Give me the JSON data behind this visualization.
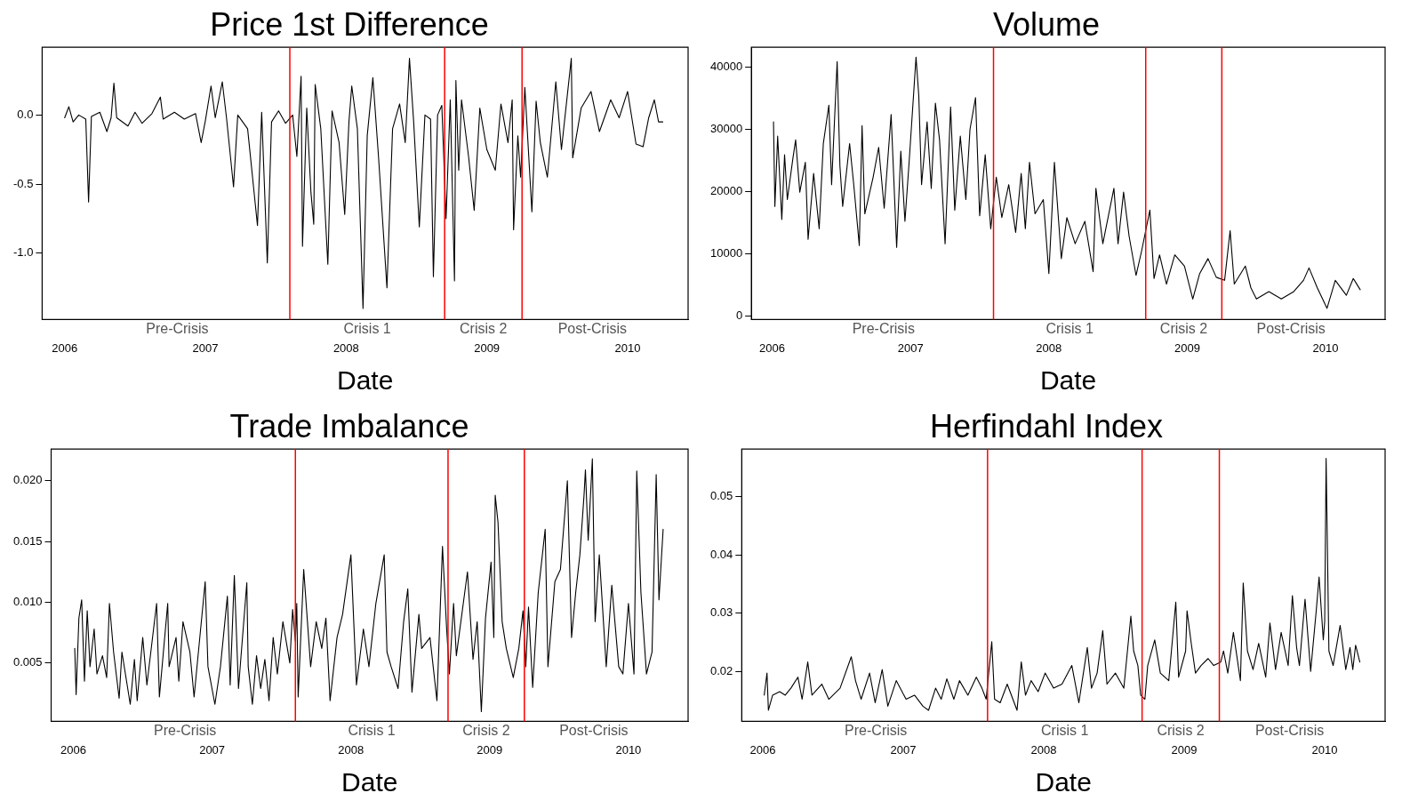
{
  "chart_data": [
    {
      "type": "line",
      "title": "Price 1st Difference",
      "xlabel": "Date",
      "color": "#000000",
      "xlim": [
        2005.84,
        2010.43
      ],
      "xticks": [
        2006,
        2007,
        2008,
        2009,
        2010
      ],
      "ylim": [
        -1.48,
        0.49
      ],
      "yticks": [
        {
          "value": -1,
          "label": "-1.0"
        },
        {
          "value": -0.5,
          "label": "-0.5"
        },
        {
          "value": 0,
          "label": "0.0"
        }
      ],
      "x": [
        2006.0,
        2006.03,
        2006.06,
        2006.1,
        2006.15,
        2006.17,
        2006.19,
        2006.25,
        2006.3,
        2006.33,
        2006.35,
        2006.37,
        2006.45,
        2006.5,
        2006.55,
        2006.62,
        2006.68,
        2006.7,
        2006.78,
        2006.85,
        2006.93,
        2006.97,
        2007.0,
        2007.04,
        2007.07,
        2007.12,
        2007.15,
        2007.2,
        2007.23,
        2007.3,
        2007.37,
        2007.4,
        2007.44,
        2007.47,
        2007.52,
        2007.57,
        2007.62,
        2007.65,
        2007.68,
        2007.69,
        2007.72,
        2007.75,
        2007.77,
        2007.78,
        2007.82,
        2007.87,
        2007.9,
        2007.95,
        2007.99,
        2008.02,
        2008.04,
        2008.08,
        2008.12,
        2008.15,
        2008.19,
        2008.23,
        2008.29,
        2008.33,
        2008.38,
        2008.42,
        2008.45,
        2008.48,
        2008.52,
        2008.56,
        2008.6,
        2008.62,
        2008.65,
        2008.68,
        2008.71,
        2008.74,
        2008.77,
        2008.78,
        2008.8,
        2008.82,
        2008.87,
        2008.91,
        2008.95,
        2009.0,
        2009.06,
        2009.1,
        2009.15,
        2009.18,
        2009.19,
        2009.22,
        2009.24,
        2009.27,
        2009.32,
        2009.35,
        2009.38,
        2009.43,
        2009.49,
        2009.53,
        2009.6,
        2009.61,
        2009.67,
        2009.74,
        2009.8,
        2009.88,
        2009.94,
        2010.0,
        2010.06,
        2010.11,
        2010.15,
        2010.19,
        2010.22,
        2010.25
      ],
      "values": [
        -0.02,
        0.06,
        -0.05,
        0.0,
        -0.03,
        -0.63,
        -0.01,
        0.02,
        -0.12,
        -0.02,
        0.23,
        -0.02,
        -0.08,
        0.02,
        -0.06,
        0.01,
        0.13,
        -0.03,
        0.02,
        -0.03,
        0.01,
        -0.2,
        -0.04,
        0.21,
        -0.02,
        0.24,
        -0.02,
        -0.52,
        0.0,
        -0.1,
        -0.8,
        0.02,
        -1.07,
        -0.05,
        0.03,
        -0.06,
        0.0,
        -0.3,
        0.28,
        -0.95,
        0.05,
        -0.56,
        -0.79,
        0.22,
        -0.1,
        -1.08,
        0.03,
        -0.2,
        -0.72,
        -0.05,
        0.21,
        -0.1,
        -1.4,
        -0.15,
        0.27,
        -0.3,
        -1.25,
        -0.1,
        0.08,
        -0.2,
        0.41,
        -0.05,
        -0.81,
        0.0,
        -0.03,
        -1.17,
        0.0,
        0.07,
        -0.75,
        0.11,
        -1.2,
        0.25,
        -0.4,
        0.11,
        -0.3,
        -0.69,
        0.05,
        -0.25,
        -0.4,
        0.08,
        -0.2,
        0.11,
        -0.83,
        -0.15,
        -0.45,
        0.2,
        -0.7,
        0.1,
        -0.2,
        -0.45,
        0.24,
        -0.25,
        0.41,
        -0.31,
        0.05,
        0.17,
        -0.12,
        0.11,
        -0.02,
        0.17,
        -0.21,
        -0.23,
        -0.02,
        0.11,
        -0.05,
        -0.05
      ],
      "ref_lines": [
        {
          "axis": "x",
          "value": 2007.6,
          "color": "#ff0000"
        },
        {
          "axis": "x",
          "value": 2008.7,
          "color": "#ff0000"
        },
        {
          "axis": "x",
          "value": 2009.25,
          "color": "#ff0000"
        }
      ],
      "annotations": [
        "Pre-Crisis",
        "Crisis 1",
        "Crisis 2",
        "Post-Crisis"
      ]
    },
    {
      "type": "line",
      "title": "Volume",
      "xlabel": "Date",
      "color": "#000000",
      "xlim": [
        2005.85,
        2010.43
      ],
      "xticks": [
        2006,
        2007,
        2008,
        2009,
        2010
      ],
      "ylim": [
        -600,
        43200
      ],
      "yticks": [
        0,
        10000,
        20000,
        30000,
        40000
      ],
      "x": [
        2006.01,
        2006.02,
        2006.04,
        2006.07,
        2006.09,
        2006.11,
        2006.15,
        2006.17,
        2006.2,
        2006.24,
        2006.26,
        2006.3,
        2006.34,
        2006.37,
        2006.41,
        2006.43,
        2006.47,
        2006.49,
        2006.51,
        2006.56,
        2006.59,
        2006.63,
        2006.65,
        2006.67,
        2006.73,
        2006.77,
        2006.81,
        2006.86,
        2006.9,
        2006.93,
        2006.96,
        2006.99,
        2007.04,
        2007.06,
        2007.08,
        2007.12,
        2007.15,
        2007.18,
        2007.21,
        2007.25,
        2007.29,
        2007.32,
        2007.36,
        2007.4,
        2007.43,
        2007.47,
        2007.5,
        2007.54,
        2007.58,
        2007.62,
        2007.66,
        2007.71,
        2007.76,
        2007.8,
        2007.83,
        2007.86,
        2007.9,
        2007.96,
        2008.0,
        2008.04,
        2008.09,
        2008.13,
        2008.19,
        2008.26,
        2008.32,
        2008.34,
        2008.39,
        2008.47,
        2008.5,
        2008.54,
        2008.58,
        2008.63,
        2008.67,
        2008.73,
        2008.76,
        2008.8,
        2008.85,
        2008.91,
        2008.98,
        2009.04,
        2009.09,
        2009.15,
        2009.21,
        2009.27,
        2009.31,
        2009.34,
        2009.42,
        2009.46,
        2009.5,
        2009.59,
        2009.68,
        2009.77,
        2009.84,
        2009.88,
        2009.94,
        2010.01,
        2010.07,
        2010.15,
        2010.2,
        2010.25
      ],
      "values": [
        31200,
        17600,
        28900,
        15500,
        25900,
        18700,
        25300,
        28300,
        19900,
        24700,
        12300,
        22900,
        14000,
        27700,
        33900,
        21100,
        40900,
        24100,
        17600,
        27700,
        21100,
        11300,
        30600,
        16400,
        22300,
        27100,
        17300,
        32400,
        11000,
        26500,
        15200,
        24700,
        41600,
        35400,
        21100,
        31200,
        20500,
        34200,
        28300,
        11600,
        33600,
        17000,
        28900,
        18700,
        30000,
        35100,
        16100,
        25900,
        14000,
        22300,
        15800,
        21100,
        13400,
        22900,
        14000,
        24700,
        16400,
        18700,
        6800,
        24700,
        9200,
        15800,
        11600,
        15200,
        7100,
        20500,
        11600,
        20500,
        11600,
        19900,
        12800,
        6500,
        10400,
        17000,
        6000,
        9800,
        5100,
        9800,
        8000,
        2700,
        6800,
        9200,
        6200,
        5700,
        13700,
        5100,
        8000,
        4500,
        2700,
        3900,
        2700,
        3900,
        5700,
        7700,
        4500,
        1200,
        5700,
        3300,
        6000,
        4200
      ],
      "ref_lines": [
        {
          "axis": "x",
          "value": 2007.6,
          "color": "#ff0000"
        },
        {
          "axis": "x",
          "value": 2008.7,
          "color": "#ff0000"
        },
        {
          "axis": "x",
          "value": 2009.25,
          "color": "#ff0000"
        }
      ],
      "annotations": [
        "Pre-Crisis",
        "Crisis 1",
        "Crisis 2",
        "Post-Crisis"
      ]
    },
    {
      "type": "line",
      "title": "Trade Imbalance",
      "xlabel": "Date",
      "color": "#000000",
      "xlim": [
        2005.84,
        2010.43
      ],
      "xticks": [
        2006,
        2007,
        2008,
        2009,
        2010
      ],
      "ylim": [
        0.0002,
        0.0226
      ],
      "yticks": [
        {
          "value": 0.005,
          "label": "0.005"
        },
        {
          "value": 0.01,
          "label": "0.010"
        },
        {
          "value": 0.015,
          "label": "0.015"
        },
        {
          "value": 0.02,
          "label": "0.020"
        }
      ],
      "x": [
        2006.01,
        2006.02,
        2006.04,
        2006.06,
        2006.08,
        2006.1,
        2006.12,
        2006.15,
        2006.17,
        2006.21,
        2006.24,
        2006.26,
        2006.29,
        2006.33,
        2006.35,
        2006.41,
        2006.44,
        2006.46,
        2006.5,
        2006.53,
        2006.6,
        2006.62,
        2006.68,
        2006.69,
        2006.74,
        2006.76,
        2006.79,
        2006.84,
        2006.87,
        2006.95,
        2006.97,
        2007.02,
        2007.06,
        2007.11,
        2007.13,
        2007.16,
        2007.19,
        2007.25,
        2007.26,
        2007.29,
        2007.32,
        2007.35,
        2007.38,
        2007.41,
        2007.44,
        2007.47,
        2007.51,
        2007.56,
        2007.58,
        2007.6,
        2007.61,
        2007.62,
        2007.66,
        2007.71,
        2007.75,
        2007.79,
        2007.82,
        2007.85,
        2007.9,
        2007.94,
        2008.0,
        2008.04,
        2008.09,
        2008.13,
        2008.18,
        2008.24,
        2008.26,
        2008.29,
        2008.34,
        2008.38,
        2008.41,
        2008.44,
        2008.49,
        2008.51,
        2008.57,
        2008.62,
        2008.66,
        2008.69,
        2008.71,
        2008.74,
        2008.76,
        2008.84,
        2008.88,
        2008.91,
        2008.94,
        2008.97,
        2009.01,
        2009.03,
        2009.04,
        2009.06,
        2009.09,
        2009.12,
        2009.17,
        2009.21,
        2009.24,
        2009.26,
        2009.28,
        2009.31,
        2009.35,
        2009.4,
        2009.42,
        2009.47,
        2009.51,
        2009.56,
        2009.59,
        2009.62,
        2009.65,
        2009.68,
        2009.69,
        2009.71,
        2009.74,
        2009.76,
        2009.79,
        2009.84,
        2009.88,
        2009.93,
        2009.96,
        2010.0,
        2010.04,
        2010.06,
        2010.09,
        2010.13,
        2010.17,
        2010.2,
        2010.22,
        2010.25
      ],
      "values": [
        0.0062,
        0.0024,
        0.0087,
        0.0102,
        0.0035,
        0.0093,
        0.0047,
        0.0078,
        0.0041,
        0.0056,
        0.0038,
        0.0099,
        0.0059,
        0.0021,
        0.0059,
        0.0016,
        0.0053,
        0.0019,
        0.0071,
        0.0032,
        0.0099,
        0.0022,
        0.0099,
        0.0047,
        0.0071,
        0.0035,
        0.0084,
        0.0059,
        0.0022,
        0.0117,
        0.0047,
        0.0016,
        0.0047,
        0.0105,
        0.0032,
        0.0122,
        0.0029,
        0.0116,
        0.0047,
        0.0016,
        0.0056,
        0.0029,
        0.0053,
        0.0019,
        0.0071,
        0.0041,
        0.0084,
        0.005,
        0.0094,
        0.0068,
        0.0099,
        0.0022,
        0.0127,
        0.0047,
        0.0084,
        0.0062,
        0.0087,
        0.0019,
        0.0071,
        0.009,
        0.0139,
        0.0032,
        0.0078,
        0.0047,
        0.0099,
        0.0139,
        0.0059,
        0.0047,
        0.0029,
        0.0084,
        0.0111,
        0.0026,
        0.009,
        0.0062,
        0.0071,
        0.0019,
        0.0146,
        0.0078,
        0.0041,
        0.0099,
        0.0056,
        0.0125,
        0.0053,
        0.0084,
        0.001,
        0.0087,
        0.0133,
        0.0071,
        0.0188,
        0.0166,
        0.0084,
        0.0062,
        0.0038,
        0.0062,
        0.0093,
        0.0047,
        0.0096,
        0.003,
        0.0108,
        0.016,
        0.0047,
        0.0117,
        0.0127,
        0.02,
        0.0071,
        0.0108,
        0.0139,
        0.0188,
        0.0209,
        0.0151,
        0.0218,
        0.0084,
        0.0139,
        0.0047,
        0.0114,
        0.0047,
        0.0041,
        0.0099,
        0.0041,
        0.0208,
        0.0108,
        0.0041,
        0.0059,
        0.0205,
        0.0102,
        0.016
      ],
      "ref_lines": [
        {
          "axis": "x",
          "value": 2007.6,
          "color": "#ff0000"
        },
        {
          "axis": "x",
          "value": 2008.7,
          "color": "#ff0000"
        },
        {
          "axis": "x",
          "value": 2009.25,
          "color": "#ff0000"
        }
      ],
      "annotations": [
        "Pre-Crisis",
        "Crisis 1",
        "Crisis 2",
        "Post-Crisis"
      ]
    },
    {
      "type": "line",
      "title": "Herfindahl Index",
      "xlabel": "Date",
      "color": "#000000",
      "xlim": [
        2005.85,
        2010.43
      ],
      "xticks": [
        2006,
        2007,
        2008,
        2009,
        2010
      ],
      "ylim": [
        0.0114,
        0.0582
      ],
      "yticks": [
        0.02,
        0.03,
        0.04,
        0.05
      ],
      "x": [
        2006.01,
        2006.03,
        2006.04,
        2006.07,
        2006.12,
        2006.16,
        2006.2,
        2006.25,
        2006.28,
        2006.32,
        2006.35,
        2006.42,
        2006.47,
        2006.55,
        2006.63,
        2006.66,
        2006.7,
        2006.76,
        2006.8,
        2006.85,
        2006.89,
        2006.95,
        2007.02,
        2007.08,
        2007.14,
        2007.18,
        2007.23,
        2007.27,
        2007.31,
        2007.36,
        2007.4,
        2007.46,
        2007.52,
        2007.56,
        2007.59,
        2007.63,
        2007.65,
        2007.69,
        2007.74,
        2007.81,
        2007.84,
        2007.87,
        2007.91,
        2007.96,
        2008.01,
        2008.07,
        2008.13,
        2008.2,
        2008.25,
        2008.31,
        2008.34,
        2008.38,
        2008.42,
        2008.45,
        2008.51,
        2008.57,
        2008.62,
        2008.64,
        2008.67,
        2008.69,
        2008.72,
        2008.74,
        2008.79,
        2008.83,
        2008.89,
        2008.94,
        2008.96,
        2009.01,
        2009.02,
        2009.05,
        2009.08,
        2009.12,
        2009.17,
        2009.21,
        2009.26,
        2009.28,
        2009.31,
        2009.35,
        2009.4,
        2009.42,
        2009.45,
        2009.49,
        2009.53,
        2009.58,
        2009.61,
        2009.65,
        2009.69,
        2009.74,
        2009.77,
        2009.8,
        2009.82,
        2009.86,
        2009.9,
        2009.94,
        2009.96,
        2009.99,
        2010.0,
        2010.01,
        2010.03,
        2010.06,
        2010.11,
        2010.15,
        2010.18,
        2010.2,
        2010.22,
        2010.25
      ],
      "values": [
        0.0159,
        0.0197,
        0.0133,
        0.0159,
        0.0165,
        0.0159,
        0.0171,
        0.019,
        0.0152,
        0.0216,
        0.0159,
        0.0178,
        0.0152,
        0.0171,
        0.0225,
        0.0184,
        0.0152,
        0.0197,
        0.0146,
        0.0203,
        0.014,
        0.0184,
        0.0152,
        0.0159,
        0.014,
        0.0133,
        0.0171,
        0.0152,
        0.0187,
        0.0152,
        0.0184,
        0.0159,
        0.019,
        0.0171,
        0.0152,
        0.0251,
        0.0152,
        0.0146,
        0.0178,
        0.0133,
        0.0216,
        0.0159,
        0.0184,
        0.0165,
        0.0197,
        0.0171,
        0.0178,
        0.021,
        0.0146,
        0.0241,
        0.0171,
        0.0197,
        0.027,
        0.0178,
        0.0197,
        0.0171,
        0.0295,
        0.0235,
        0.021,
        0.0159,
        0.0152,
        0.021,
        0.0254,
        0.0197,
        0.0184,
        0.0319,
        0.019,
        0.0235,
        0.0304,
        0.0248,
        0.0197,
        0.021,
        0.0222,
        0.021,
        0.0216,
        0.0235,
        0.0197,
        0.0267,
        0.0184,
        0.0352,
        0.0235,
        0.0203,
        0.0248,
        0.019,
        0.0283,
        0.0203,
        0.0267,
        0.021,
        0.033,
        0.0241,
        0.021,
        0.0324,
        0.02,
        0.0305,
        0.0362,
        0.0254,
        0.0286,
        0.0566,
        0.0235,
        0.021,
        0.0279,
        0.0203,
        0.0241,
        0.0203,
        0.0245,
        0.0216
      ],
      "ref_lines": [
        {
          "axis": "x",
          "value": 2007.6,
          "color": "#ff0000"
        },
        {
          "axis": "x",
          "value": 2008.7,
          "color": "#ff0000"
        },
        {
          "axis": "x",
          "value": 2009.25,
          "color": "#ff0000"
        }
      ],
      "annotations": [
        "Pre-Crisis",
        "Crisis 1",
        "Crisis 2",
        "Post-Crisis"
      ]
    }
  ]
}
